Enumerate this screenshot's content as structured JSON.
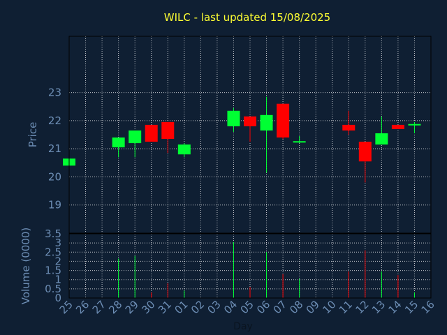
{
  "chart_data": {
    "type": "candlestick",
    "title": "WILC - last updated 15/08/2025",
    "xlabel": "Day",
    "price_panel": {
      "ylabel": "Price",
      "yticks": [
        19,
        20,
        21,
        22,
        23
      ],
      "ylim": [
        18,
        25
      ]
    },
    "volume_panel": {
      "ylabel": "Volume (0000)",
      "yticks": [
        0,
        0.5,
        1,
        1.5,
        2,
        2.5,
        3,
        3.5
      ],
      "ylim": [
        0,
        3.5
      ]
    },
    "days": [
      "25",
      "26",
      "27",
      "28",
      "29",
      "30",
      "31",
      "01",
      "02",
      "03",
      "04",
      "05",
      "06",
      "07",
      "08",
      "09",
      "10",
      "11",
      "12",
      "13",
      "14",
      "15",
      "16"
    ],
    "candles": [
      {
        "day": "25",
        "open": 20.4,
        "high": 20.65,
        "low": 20.35,
        "close": 20.65
      },
      {
        "day": "28",
        "open": 21.05,
        "high": 21.4,
        "low": 20.7,
        "close": 21.4
      },
      {
        "day": "29",
        "open": 21.2,
        "high": 21.65,
        "low": 20.7,
        "close": 21.65
      },
      {
        "day": "30",
        "open": 21.85,
        "high": 21.85,
        "low": 21.25,
        "close": 21.25
      },
      {
        "day": "31",
        "open": 21.95,
        "high": 21.95,
        "low": 20.85,
        "close": 21.35
      },
      {
        "day": "01",
        "open": 20.8,
        "high": 21.2,
        "low": 20.7,
        "close": 21.15
      },
      {
        "day": "04",
        "open": 21.8,
        "high": 22.45,
        "low": 21.6,
        "close": 22.35
      },
      {
        "day": "05",
        "open": 22.15,
        "high": 22.15,
        "low": 21.25,
        "close": 21.8
      },
      {
        "day": "06",
        "open": 21.65,
        "high": 22.85,
        "low": 20.15,
        "close": 22.2
      },
      {
        "day": "07",
        "open": 22.6,
        "high": 22.6,
        "low": 21.35,
        "close": 21.4
      },
      {
        "day": "08",
        "open": 21.22,
        "high": 21.45,
        "low": 21.2,
        "close": 21.27
      },
      {
        "day": "11",
        "open": 21.85,
        "high": 22.35,
        "low": 21.5,
        "close": 21.65
      },
      {
        "day": "12",
        "open": 21.25,
        "high": 21.25,
        "low": 19.8,
        "close": 20.55
      },
      {
        "day": "13",
        "open": 21.15,
        "high": 22.15,
        "low": 21.15,
        "close": 21.55
      },
      {
        "day": "14",
        "open": 21.85,
        "high": 21.85,
        "low": 21.7,
        "close": 21.7
      },
      {
        "day": "15",
        "open": 21.83,
        "high": 21.95,
        "low": 21.55,
        "close": 21.88
      }
    ],
    "volume": [
      {
        "day": "25",
        "value": 0,
        "color": "#00ff33"
      },
      {
        "day": "28",
        "value": 2.15,
        "color": "#00ff33"
      },
      {
        "day": "29",
        "value": 2.3,
        "color": "#00ff33"
      },
      {
        "day": "30",
        "value": 0.3,
        "color": "#ff0000"
      },
      {
        "day": "31",
        "value": 0.8,
        "color": "#ff0000"
      },
      {
        "day": "01",
        "value": 0.4,
        "color": "#00ff33"
      },
      {
        "day": "04",
        "value": 3.05,
        "color": "#00ff33"
      },
      {
        "day": "05",
        "value": 0.6,
        "color": "#ff0000"
      },
      {
        "day": "06",
        "value": 2.5,
        "color": "#00ff33"
      },
      {
        "day": "07",
        "value": 1.3,
        "color": "#ff0000"
      },
      {
        "day": "08",
        "value": 1.05,
        "color": "#00ff33"
      },
      {
        "day": "11",
        "value": 1.45,
        "color": "#ff0000"
      },
      {
        "day": "12",
        "value": 2.6,
        "color": "#ff0000"
      },
      {
        "day": "13",
        "value": 1.45,
        "color": "#00ff33"
      },
      {
        "day": "14",
        "value": 1.25,
        "color": "#ff0000"
      },
      {
        "day": "15",
        "value": 0.3,
        "color": "#00ff33"
      }
    ],
    "colors": {
      "up": "#00ff33",
      "down": "#ff0000",
      "background": "#0f1f33",
      "grid": "#ffffff",
      "text": "#6d8eb5",
      "title": "#ffff33"
    },
    "grid": true
  }
}
